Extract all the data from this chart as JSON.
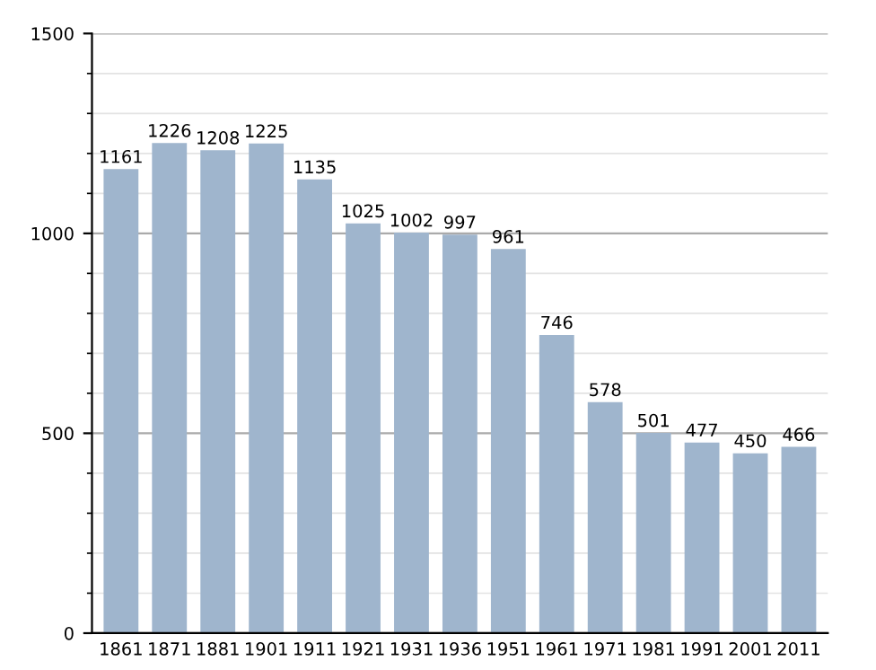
{
  "chart_data": {
    "type": "bar",
    "categories": [
      "1861",
      "1871",
      "1881",
      "1901",
      "1911",
      "1921",
      "1931",
      "1936",
      "1951",
      "1961",
      "1971",
      "1981",
      "1991",
      "2001",
      "2011"
    ],
    "values": [
      1161,
      1226,
      1208,
      1225,
      1135,
      1025,
      1002,
      997,
      961,
      746,
      578,
      501,
      477,
      450,
      466
    ],
    "color": "#9fb5cd",
    "ylim": [
      0,
      1500
    ],
    "yticks": [
      0,
      500,
      1000,
      1500
    ],
    "grid": "y",
    "data_labels": true
  }
}
